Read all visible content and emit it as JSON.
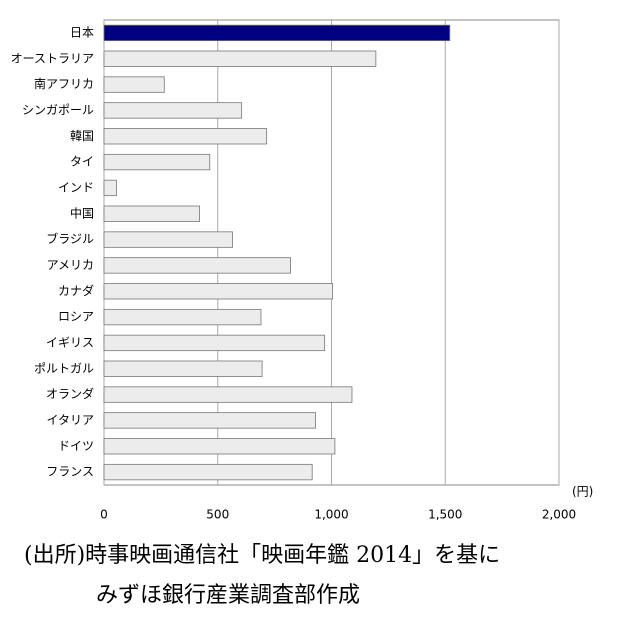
{
  "chart_data": {
    "type": "hbar",
    "categories": [
      "日本",
      "オーストラリア",
      "南アフリカ",
      "シンガポール",
      "韓国",
      "タイ",
      "インド",
      "中国",
      "ブラジル",
      "アメリカ",
      "カナダ",
      "ロシア",
      "イギリス",
      "ポルトガル",
      "オランダ",
      "イタリア",
      "ドイツ",
      "フランス"
    ],
    "values": [
      1520,
      1195,
      265,
      605,
      715,
      465,
      55,
      420,
      565,
      820,
      1005,
      690,
      970,
      695,
      1090,
      930,
      1015,
      915
    ],
    "colors": [
      "#000080",
      "#ececec",
      "#ececec",
      "#ececec",
      "#ececec",
      "#ececec",
      "#ececec",
      "#ececec",
      "#ececec",
      "#ececec",
      "#ececec",
      "#ececec",
      "#ececec",
      "#ececec",
      "#ececec",
      "#ececec",
      "#ececec",
      "#ececec"
    ],
    "xlim": [
      0,
      2000
    ],
    "xticks": [
      0,
      500,
      {
        "value": 1000,
        "label": "1,000"
      },
      {
        "value": 1500,
        "label": "1,500"
      },
      {
        "value": 2000,
        "label": "2,000"
      }
    ],
    "x_unit": "(円)",
    "grid": true,
    "source": [
      "(出所)時事映画通信社「映画年鑑 2014」を基に",
      "みずほ銀行産業調査部作成"
    ]
  }
}
